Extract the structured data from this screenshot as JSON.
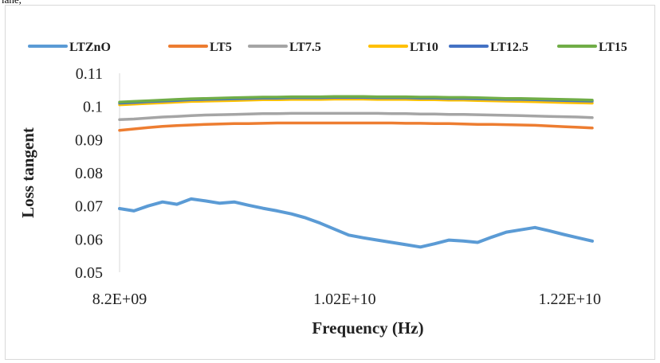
{
  "top_fragment": "lane,",
  "chart_data": {
    "type": "line",
    "xlabel": "Frequency (Hz)",
    "ylabel": "Loss tangent",
    "xlim": [
      8200000000,
      12400000000
    ],
    "ylim": [
      0.05,
      0.11
    ],
    "x_ticks": [
      8200000000,
      10200000000,
      12200000000
    ],
    "x_tick_labels": [
      "8.2E+09",
      "1.02E+10",
      "1.22E+10"
    ],
    "y_ticks": [
      0.05,
      0.06,
      0.07,
      0.08,
      0.09,
      0.1,
      0.11
    ],
    "y_tick_labels": [
      "0.05",
      "0.06",
      "0.07",
      "0.08",
      "0.09",
      "0.1",
      "0.11"
    ],
    "grid": false,
    "legend_position": "top",
    "x_range_data": [
      8200000000,
      12400000000
    ],
    "series": [
      {
        "name": "LTZnO",
        "color": "#5b9bd5",
        "values": [
          0.0692,
          0.0685,
          0.07,
          0.0712,
          0.0705,
          0.0721,
          0.0715,
          0.0708,
          0.0712,
          0.0702,
          0.0693,
          0.0685,
          0.0676,
          0.0664,
          0.0648,
          0.063,
          0.0612,
          0.0604,
          0.0597,
          0.059,
          0.0583,
          0.0576,
          0.0586,
          0.0597,
          0.0594,
          0.059,
          0.0606,
          0.0621,
          0.0628,
          0.0635,
          0.0625,
          0.0614,
          0.0604,
          0.0594
        ]
      },
      {
        "name": "LT5",
        "color": "#ed7d31",
        "values": [
          0.0928,
          0.0932,
          0.0936,
          0.094,
          0.0942,
          0.0944,
          0.0946,
          0.0947,
          0.0948,
          0.0948,
          0.0949,
          0.095,
          0.095,
          0.095,
          0.095,
          0.095,
          0.095,
          0.095,
          0.095,
          0.095,
          0.0949,
          0.0949,
          0.0948,
          0.0948,
          0.0947,
          0.0946,
          0.0946,
          0.0945,
          0.0944,
          0.0943,
          0.0941,
          0.0939,
          0.0937,
          0.0935
        ]
      },
      {
        "name": "LT7.5",
        "color": "#a5a5a5",
        "values": [
          0.096,
          0.0962,
          0.0965,
          0.0968,
          0.097,
          0.0972,
          0.0974,
          0.0975,
          0.0976,
          0.0977,
          0.0978,
          0.0978,
          0.0979,
          0.0979,
          0.0979,
          0.0979,
          0.0979,
          0.0979,
          0.0979,
          0.0978,
          0.0978,
          0.0977,
          0.0977,
          0.0976,
          0.0976,
          0.0975,
          0.0974,
          0.0973,
          0.0972,
          0.0971,
          0.097,
          0.0969,
          0.0968,
          0.0966
        ]
      },
      {
        "name": "LT10",
        "color": "#ffc000",
        "values": [
          0.1005,
          0.1007,
          0.1009,
          0.1011,
          0.1013,
          0.1015,
          0.1016,
          0.1017,
          0.1018,
          0.1019,
          0.102,
          0.102,
          0.1021,
          0.1021,
          0.1021,
          0.1022,
          0.1022,
          0.1022,
          0.1021,
          0.1021,
          0.1021,
          0.102,
          0.102,
          0.1019,
          0.1019,
          0.1018,
          0.1017,
          0.1016,
          0.1015,
          0.1014,
          0.1013,
          0.1012,
          0.1011,
          0.101
        ]
      },
      {
        "name": "LT12.5",
        "color": "#4472c4",
        "values": [
          0.101,
          0.1012,
          0.1014,
          0.1016,
          0.1018,
          0.102,
          0.1021,
          0.1022,
          0.1023,
          0.1024,
          0.1025,
          0.1025,
          0.1026,
          0.1026,
          0.1026,
          0.1027,
          0.1027,
          0.1027,
          0.1026,
          0.1026,
          0.1026,
          0.1025,
          0.1025,
          0.1024,
          0.1024,
          0.1023,
          0.1022,
          0.1021,
          0.1021,
          0.102,
          0.1019,
          0.1018,
          0.1017,
          0.1016
        ]
      },
      {
        "name": "LT15",
        "color": "#70ad47",
        "values": [
          0.1013,
          0.1015,
          0.1017,
          0.1019,
          0.1021,
          0.1023,
          0.1024,
          0.1025,
          0.1026,
          0.1027,
          0.1028,
          0.1028,
          0.1029,
          0.1029,
          0.1029,
          0.103,
          0.103,
          0.103,
          0.1029,
          0.1029,
          0.1029,
          0.1028,
          0.1028,
          0.1027,
          0.1027,
          0.1026,
          0.1025,
          0.1024,
          0.1024,
          0.1023,
          0.1022,
          0.1021,
          0.102,
          0.1019
        ]
      }
    ]
  }
}
